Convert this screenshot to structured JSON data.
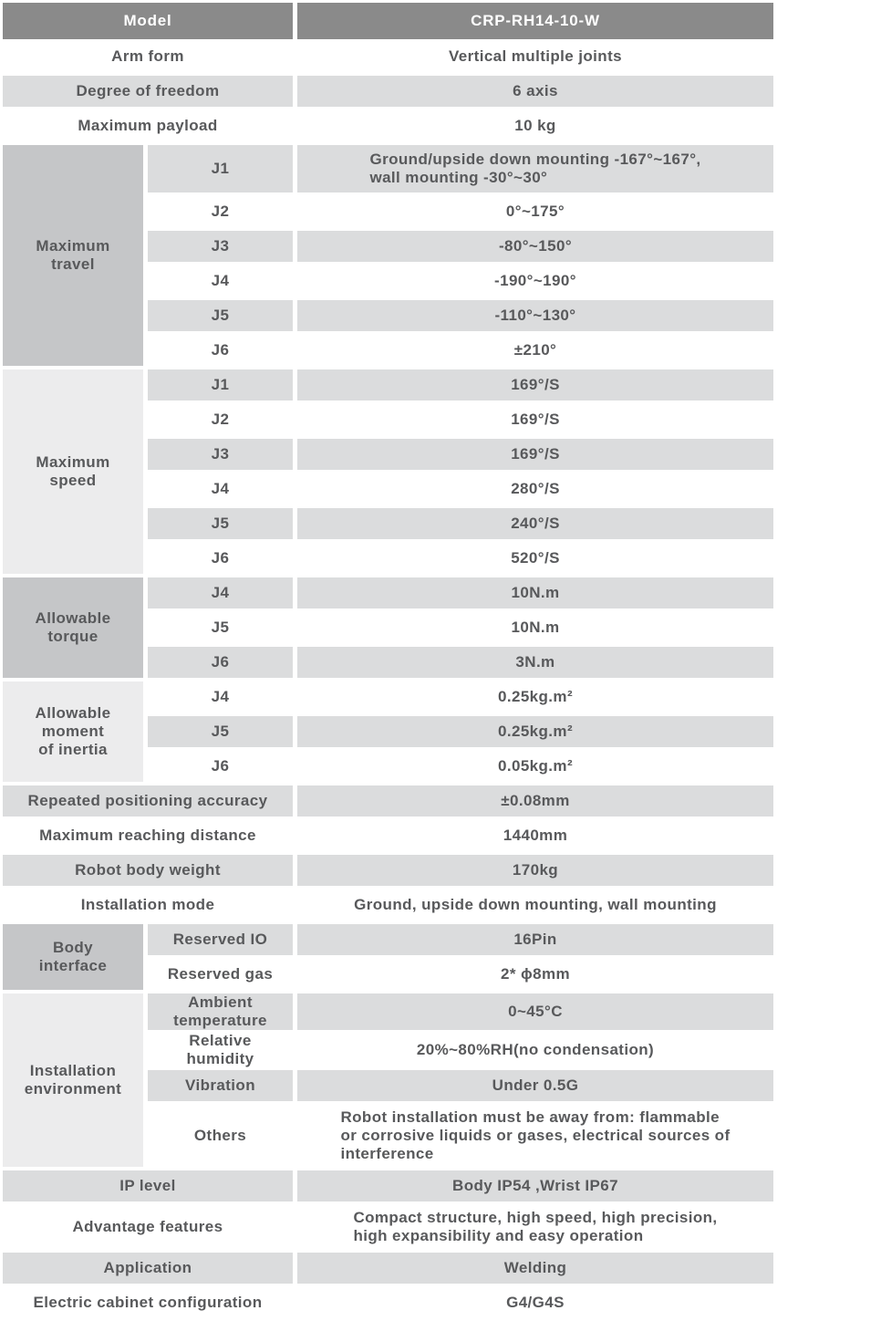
{
  "colors": {
    "header_bg": "#8a8a8a",
    "header_text": "#ffffff",
    "shaded_row_bg": "#dbdcdd",
    "group_cell_dark_bg": "#c5c6c8",
    "group_cell_light_bg": "#ececed",
    "text": "#58595b"
  },
  "table": {
    "header": {
      "label": "Model",
      "value": "CRP-RH14-10-W"
    },
    "sections": [
      {
        "type": "rows",
        "rows": [
          {
            "label": "Arm form",
            "value": "Vertical multiple joints"
          },
          {
            "label": "Degree of freedom",
            "value": "6 axis"
          },
          {
            "label": "Maximum payload",
            "value": "10 kg"
          }
        ]
      },
      {
        "type": "group",
        "label": "Maximum\ntravel",
        "tone": "dark",
        "rows": [
          {
            "label": "J1",
            "value": "Ground/upside down mounting -167°~167°,\nwall mounting -30°~30°",
            "multiline": true
          },
          {
            "label": "J2",
            "value": "0°~175°"
          },
          {
            "label": "J3",
            "value": "-80°~150°"
          },
          {
            "label": "J4",
            "value": "-190°~190°"
          },
          {
            "label": "J5",
            "value": "-110°~130°"
          },
          {
            "label": "J6",
            "value": "±210°"
          }
        ]
      },
      {
        "type": "group",
        "label": "Maximum\nspeed",
        "tone": "light",
        "rows": [
          {
            "label": "J1",
            "value": "169°/S"
          },
          {
            "label": "J2",
            "value": "169°/S"
          },
          {
            "label": "J3",
            "value": "169°/S"
          },
          {
            "label": "J4",
            "value": "280°/S"
          },
          {
            "label": "J5",
            "value": "240°/S"
          },
          {
            "label": "J6",
            "value": "520°/S"
          }
        ]
      },
      {
        "type": "group",
        "label": "Allowable\ntorque",
        "tone": "dark",
        "rows": [
          {
            "label": "J4",
            "value": "10N.m"
          },
          {
            "label": "J5",
            "value": "10N.m"
          },
          {
            "label": "J6",
            "value": "3N.m"
          }
        ]
      },
      {
        "type": "group",
        "label": "Allowable\nmoment\nof inertia",
        "tone": "light",
        "rows": [
          {
            "label": "J4",
            "value": "0.25kg.m²"
          },
          {
            "label": "J5",
            "value": "0.25kg.m²"
          },
          {
            "label": "J6",
            "value": "0.05kg.m²"
          }
        ]
      },
      {
        "type": "rows",
        "rows": [
          {
            "label": "Repeated positioning accuracy",
            "value": "±0.08mm"
          },
          {
            "label": "Maximum reaching distance",
            "value": "1440mm"
          },
          {
            "label": "Robot body weight",
            "value": "170kg"
          },
          {
            "label": "Installation mode",
            "value": "Ground, upside down mounting, wall mounting"
          }
        ]
      },
      {
        "type": "group",
        "label": "Body\ninterface",
        "tone": "dark",
        "rows": [
          {
            "label": "Reserved IO",
            "value": "16Pin"
          },
          {
            "label": "Reserved gas",
            "value": "2* ϕ8mm"
          }
        ]
      },
      {
        "type": "group",
        "label": "Installation\nenvironment",
        "tone": "light",
        "rows": [
          {
            "label": "Ambient\ntemperature",
            "value": "0~45°C"
          },
          {
            "label": "Relative\nhumidity",
            "value": "20%~80%RH(no condensation)"
          },
          {
            "label": "Vibration",
            "value": "Under 0.5G"
          },
          {
            "label": "Others",
            "value": "Robot installation must be away from: flammable\nor corrosive liquids or gases, electrical sources of\ninterference",
            "multiline": true
          }
        ]
      },
      {
        "type": "rows",
        "rows": [
          {
            "label": "IP level",
            "value": "Body IP54 ,Wrist IP67"
          },
          {
            "label": "Advantage features",
            "value": "Compact structure, high speed, high precision,\nhigh expansibility and easy operation",
            "multiline": true
          },
          {
            "label": "Application",
            "value": "Welding"
          },
          {
            "label": "Electric cabinet configuration",
            "value": "G4/G4S"
          }
        ]
      }
    ]
  }
}
